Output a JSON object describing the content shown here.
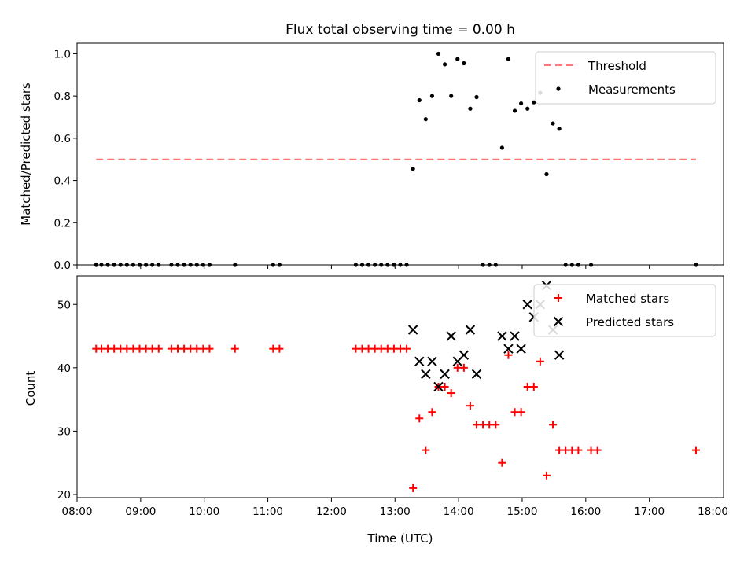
{
  "chart_data": [
    {
      "type": "scatter",
      "title": "Flux total observing time = 0.00 h",
      "xlabel": "",
      "ylabel": "Matched/Predicted stars",
      "xlim": [
        "08:00",
        "18:10"
      ],
      "ylim": [
        0,
        1.05
      ],
      "yticks": [
        "0.0",
        "0.2",
        "0.4",
        "0.6",
        "0.8",
        "1.0"
      ],
      "legend_position": "top-right",
      "threshold": {
        "name": "Threshold",
        "y": 0.5,
        "x_start": "08:18",
        "x_end": "17:44",
        "color": "#ff7777"
      },
      "series": [
        {
          "name": "Measurements",
          "color": "#000000",
          "points": [
            [
              "08:18",
              0
            ],
            [
              "08:23",
              0
            ],
            [
              "08:29",
              0
            ],
            [
              "08:35",
              0
            ],
            [
              "08:41",
              0
            ],
            [
              "08:47",
              0
            ],
            [
              "08:53",
              0
            ],
            [
              "08:59",
              0
            ],
            [
              "09:05",
              0
            ],
            [
              "09:11",
              0
            ],
            [
              "09:17",
              0
            ],
            [
              "09:29",
              0
            ],
            [
              "09:35",
              0
            ],
            [
              "09:41",
              0
            ],
            [
              "09:47",
              0
            ],
            [
              "09:53",
              0
            ],
            [
              "09:59",
              0
            ],
            [
              "10:05",
              0
            ],
            [
              "10:29",
              0
            ],
            [
              "11:05",
              0
            ],
            [
              "11:11",
              0
            ],
            [
              "12:23",
              0
            ],
            [
              "12:29",
              0
            ],
            [
              "12:35",
              0
            ],
            [
              "12:41",
              0
            ],
            [
              "12:47",
              0
            ],
            [
              "12:53",
              0
            ],
            [
              "12:59",
              0
            ],
            [
              "13:05",
              0
            ],
            [
              "13:11",
              0
            ],
            [
              "13:17",
              0.455
            ],
            [
              "13:23",
              0.78
            ],
            [
              "13:29",
              0.69
            ],
            [
              "13:35",
              0.8
            ],
            [
              "13:41",
              1.0
            ],
            [
              "13:47",
              0.95
            ],
            [
              "13:53",
              0.8
            ],
            [
              "13:59",
              0.975
            ],
            [
              "14:05",
              0.955
            ],
            [
              "14:11",
              0.74
            ],
            [
              "14:17",
              0.795
            ],
            [
              "14:23",
              0
            ],
            [
              "14:29",
              0
            ],
            [
              "14:35",
              0
            ],
            [
              "14:41",
              0.555
            ],
            [
              "14:47",
              0.975
            ],
            [
              "14:53",
              0.73
            ],
            [
              "14:59",
              0.765
            ],
            [
              "15:05",
              0.74
            ],
            [
              "15:11",
              0.77
            ],
            [
              "15:17",
              0.815
            ],
            [
              "15:23",
              0.43
            ],
            [
              "15:29",
              0.67
            ],
            [
              "15:35",
              0.645
            ],
            [
              "15:41",
              0
            ],
            [
              "15:47",
              0
            ],
            [
              "15:53",
              0
            ],
            [
              "16:05",
              0
            ],
            [
              "17:44",
              0
            ]
          ]
        }
      ]
    },
    {
      "type": "scatter",
      "title": "",
      "xlabel": "Time (UTC)",
      "ylabel": "Count",
      "xlim": [
        "08:00",
        "18:10"
      ],
      "ylim": [
        19.5,
        54.5
      ],
      "yticks": [
        "20",
        "30",
        "40",
        "50"
      ],
      "xticks": [
        "08:00",
        "09:00",
        "10:00",
        "11:00",
        "12:00",
        "13:00",
        "14:00",
        "15:00",
        "16:00",
        "17:00",
        "18:00"
      ],
      "legend_position": "top-right",
      "series": [
        {
          "name": "Matched stars",
          "marker": "plus",
          "color": "#ff0000",
          "points": [
            [
              "08:18",
              43
            ],
            [
              "08:23",
              43
            ],
            [
              "08:29",
              43
            ],
            [
              "08:35",
              43
            ],
            [
              "08:41",
              43
            ],
            [
              "08:47",
              43
            ],
            [
              "08:53",
              43
            ],
            [
              "08:59",
              43
            ],
            [
              "09:05",
              43
            ],
            [
              "09:11",
              43
            ],
            [
              "09:17",
              43
            ],
            [
              "09:29",
              43
            ],
            [
              "09:35",
              43
            ],
            [
              "09:41",
              43
            ],
            [
              "09:47",
              43
            ],
            [
              "09:53",
              43
            ],
            [
              "09:59",
              43
            ],
            [
              "10:05",
              43
            ],
            [
              "10:29",
              43
            ],
            [
              "11:05",
              43
            ],
            [
              "11:11",
              43
            ],
            [
              "12:23",
              43
            ],
            [
              "12:29",
              43
            ],
            [
              "12:35",
              43
            ],
            [
              "12:41",
              43
            ],
            [
              "12:47",
              43
            ],
            [
              "12:53",
              43
            ],
            [
              "12:59",
              43
            ],
            [
              "13:05",
              43
            ],
            [
              "13:11",
              43
            ],
            [
              "13:17",
              21
            ],
            [
              "13:23",
              32
            ],
            [
              "13:29",
              27
            ],
            [
              "13:35",
              33
            ],
            [
              "13:41",
              37
            ],
            [
              "13:47",
              37
            ],
            [
              "13:53",
              36
            ],
            [
              "13:59",
              40
            ],
            [
              "14:05",
              40
            ],
            [
              "14:11",
              34
            ],
            [
              "14:17",
              31
            ],
            [
              "14:23",
              31
            ],
            [
              "14:29",
              31
            ],
            [
              "14:35",
              31
            ],
            [
              "14:41",
              25
            ],
            [
              "14:47",
              42
            ],
            [
              "14:53",
              33
            ],
            [
              "14:59",
              33
            ],
            [
              "15:05",
              37
            ],
            [
              "15:11",
              37
            ],
            [
              "15:17",
              41
            ],
            [
              "15:23",
              23
            ],
            [
              "15:29",
              31
            ],
            [
              "15:35",
              27
            ],
            [
              "15:41",
              27
            ],
            [
              "15:47",
              27
            ],
            [
              "15:53",
              27
            ],
            [
              "16:05",
              27
            ],
            [
              "16:11",
              27
            ],
            [
              "17:44",
              27
            ]
          ]
        },
        {
          "name": "Predicted stars",
          "marker": "x",
          "color": "#000000",
          "points": [
            [
              "13:17",
              46
            ],
            [
              "13:23",
              41
            ],
            [
              "13:29",
              39
            ],
            [
              "13:35",
              41
            ],
            [
              "13:41",
              37
            ],
            [
              "13:47",
              39
            ],
            [
              "13:53",
              45
            ],
            [
              "13:59",
              41
            ],
            [
              "14:05",
              42
            ],
            [
              "14:11",
              46
            ],
            [
              "14:17",
              39
            ],
            [
              "14:41",
              45
            ],
            [
              "14:47",
              43
            ],
            [
              "14:53",
              45
            ],
            [
              "14:59",
              43
            ],
            [
              "15:05",
              50
            ],
            [
              "15:11",
              48
            ],
            [
              "15:17",
              50
            ],
            [
              "15:23",
              53
            ],
            [
              "15:29",
              46
            ],
            [
              "15:35",
              42
            ]
          ]
        }
      ]
    }
  ]
}
